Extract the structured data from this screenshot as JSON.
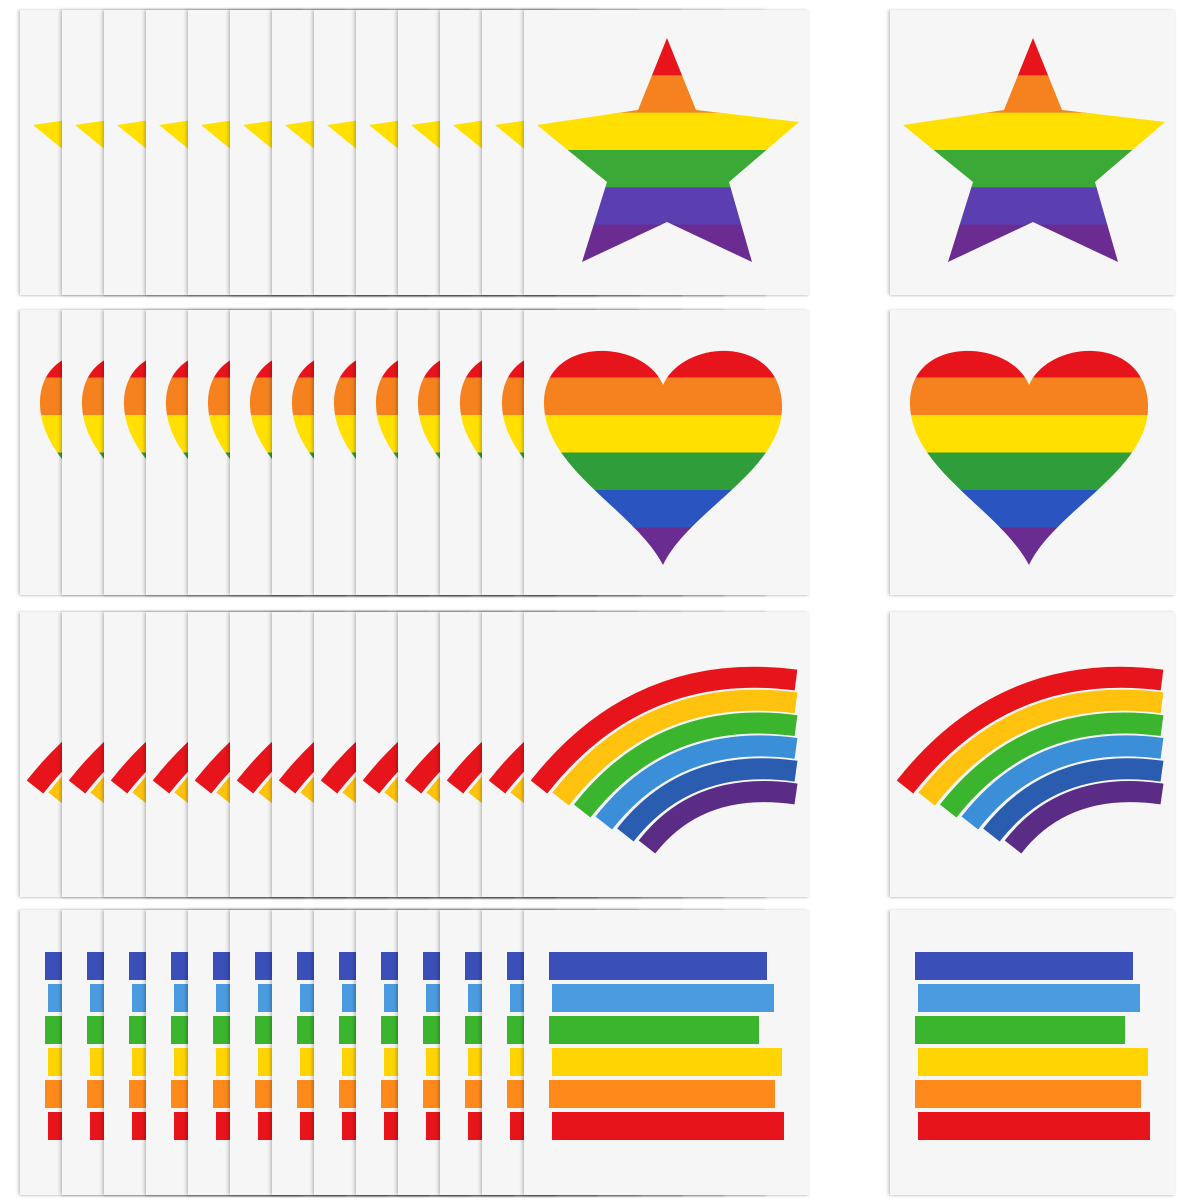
{
  "rows": [
    {
      "shape": "star",
      "colors": [
        "#e8141b",
        "#f5821f",
        "#ffe000",
        "#3aa935",
        "#5b3fb0",
        "#6a2c91"
      ]
    },
    {
      "shape": "heart",
      "colors": [
        "#e8141b",
        "#f5821f",
        "#ffe000",
        "#2f9e3a",
        "#2a55c0",
        "#6a2c91"
      ]
    },
    {
      "shape": "rainbow",
      "colors": [
        "#e8141b",
        "#ffc20e",
        "#3cb52e",
        "#3a8fd8",
        "#2a5db0",
        "#5b2c86"
      ]
    },
    {
      "shape": "flag",
      "colors": [
        "#3b4fb8",
        "#4a9be0",
        "#3cb52e",
        "#ffd400",
        "#ff8a1c",
        "#e8141b"
      ]
    }
  ],
  "stack_count": 13,
  "card_background": "#f6f6f6"
}
